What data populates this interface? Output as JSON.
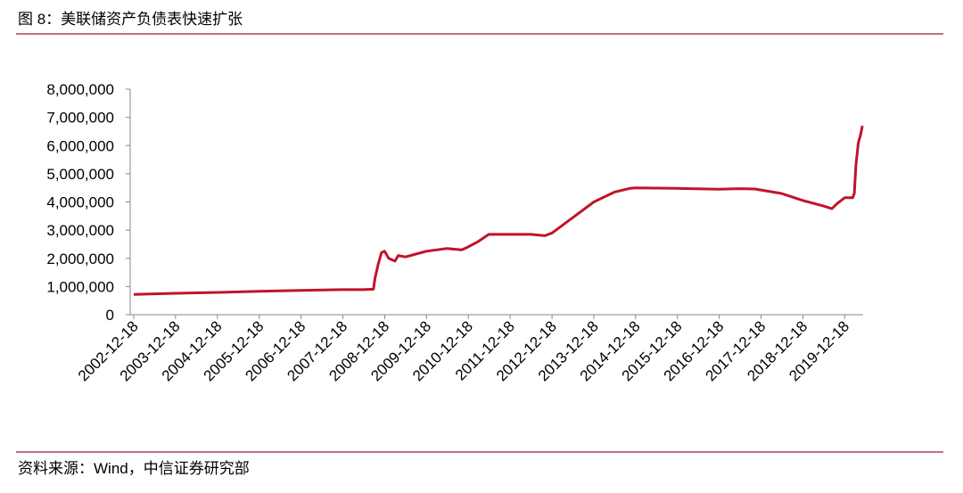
{
  "header": {
    "title": "图 8：美联储资产负债表快速扩张"
  },
  "footer": {
    "source": "资料来源：Wind，中信证券研究部"
  },
  "chart_data": {
    "type": "line",
    "x": [
      "2002-12-18",
      "2003-12-17",
      "2004-12-15",
      "2005-12-14",
      "2006-12-13",
      "2007-12-12",
      "2008-06-11",
      "2008-09-10",
      "2008-09-24",
      "2008-10-22",
      "2008-11-19",
      "2008-12-17",
      "2009-01-21",
      "2009-03-18",
      "2009-04-15",
      "2009-06-17",
      "2009-09-16",
      "2009-12-16",
      "2010-06-16",
      "2010-10-20",
      "2010-12-15",
      "2011-03-16",
      "2011-06-15",
      "2011-12-14",
      "2012-06-13",
      "2012-10-17",
      "2012-12-19",
      "2013-06-19",
      "2013-12-18",
      "2014-06-18",
      "2014-10-29",
      "2014-12-17",
      "2015-12-16",
      "2016-12-14",
      "2017-06-14",
      "2017-10-25",
      "2018-06-13",
      "2018-12-19",
      "2019-06-19",
      "2019-08-28",
      "2019-10-16",
      "2019-12-18",
      "2020-02-26",
      "2020-03-11",
      "2020-03-25",
      "2020-04-15",
      "2020-05-06",
      "2020-05-20"
    ],
    "series": [
      {
        "color": "#c0142a",
        "values": [
          720000,
          760000,
          790000,
          830000,
          860000,
          890000,
          890000,
          905000,
          1300000,
          1800000,
          2200000,
          2250000,
          2000000,
          1900000,
          2100000,
          2050000,
          2150000,
          2250000,
          2350000,
          2300000,
          2400000,
          2600000,
          2850000,
          2850000,
          2850000,
          2800000,
          2900000,
          3450000,
          4000000,
          4350000,
          4480000,
          4500000,
          4480000,
          4450000,
          4470000,
          4460000,
          4300000,
          4050000,
          3850000,
          3760000,
          3950000,
          4150000,
          4150000,
          4300000,
          5300000,
          6100000,
          6400000,
          6700000
        ]
      }
    ],
    "xlim": [
      "2002-12-18",
      "2020-05-27"
    ],
    "xticks": [
      "2002-12-18",
      "2003-12-18",
      "2004-12-18",
      "2005-12-18",
      "2006-12-18",
      "2007-12-18",
      "2008-12-18",
      "2009-12-18",
      "2010-12-18",
      "2011-12-18",
      "2012-12-18",
      "2013-12-18",
      "2014-12-18",
      "2015-12-18",
      "2016-12-18",
      "2017-12-18",
      "2018-12-18",
      "2019-12-18"
    ],
    "ylim": [
      0,
      8000000
    ],
    "yticks": [
      0,
      {
        "value": 1000000,
        "label": "1,000,000"
      },
      {
        "value": 2000000,
        "label": "2,000,000"
      },
      {
        "value": 3000000,
        "label": "3,000,000"
      },
      {
        "value": 4000000,
        "label": "4,000,000"
      },
      {
        "value": 5000000,
        "label": "5,000,000"
      },
      {
        "value": 6000000,
        "label": "6,000,000"
      },
      {
        "value": 7000000,
        "label": "7,000,000"
      },
      {
        "value": 8000000,
        "label": "8,000,000"
      }
    ]
  }
}
